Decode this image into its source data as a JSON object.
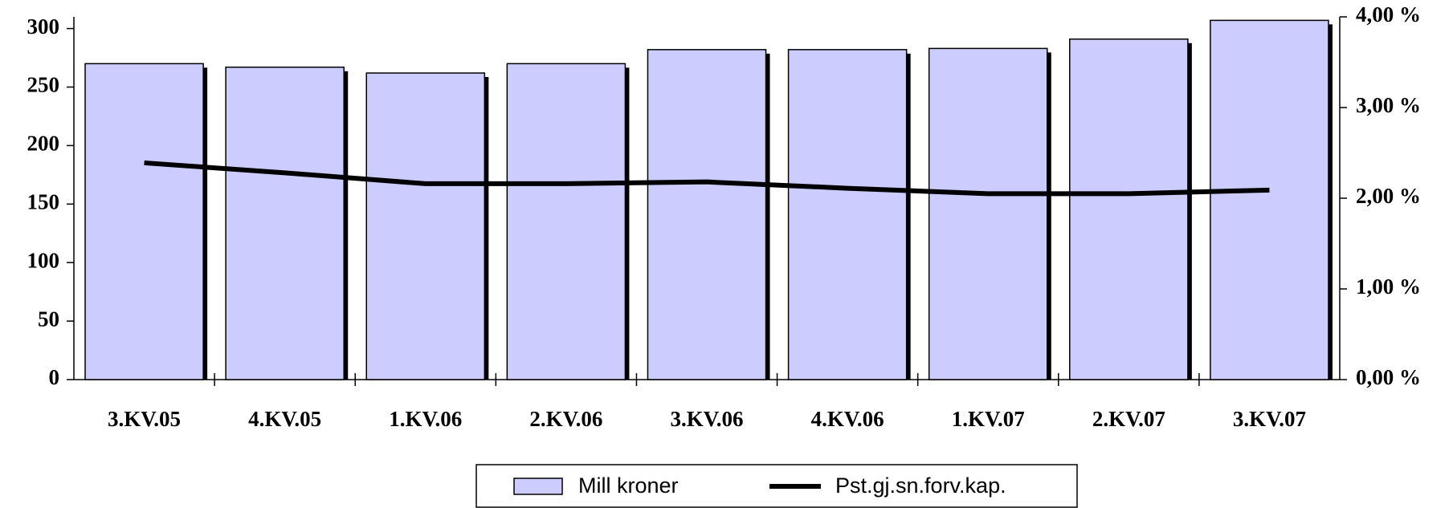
{
  "chart_data": {
    "type": "bar",
    "categories": [
      "3.KV.05",
      "4.KV.05",
      "1.KV.06",
      "2.KV.06",
      "3.KV.06",
      "4.KV.06",
      "1.KV.07",
      "2.KV.07",
      "3.KV.07"
    ],
    "series": [
      {
        "name": "Mill kroner",
        "type": "bar",
        "color": "#ccccff",
        "values": [
          270,
          267,
          262,
          270,
          282,
          282,
          283,
          291,
          307
        ]
      },
      {
        "name": "Pst.gj.sn.forv.kap.",
        "type": "line",
        "axis": "y2",
        "color": "#000000",
        "values": [
          2.39,
          2.28,
          2.16,
          2.16,
          2.18,
          2.11,
          2.05,
          2.05,
          2.09
        ]
      }
    ],
    "ylim": [
      0,
      310
    ],
    "yticks": [
      0,
      50,
      100,
      150,
      200,
      250,
      300
    ],
    "y2lim": [
      0,
      4
    ],
    "y2ticks": [
      {
        "value": 0,
        "label": "0,00 %"
      },
      {
        "value": 1,
        "label": "1,00 %"
      },
      {
        "value": 2,
        "label": "2,00 %"
      },
      {
        "value": 3,
        "label": "3,00 %"
      },
      {
        "value": 4,
        "label": "4,00 %"
      }
    ],
    "legend": "bottom"
  }
}
